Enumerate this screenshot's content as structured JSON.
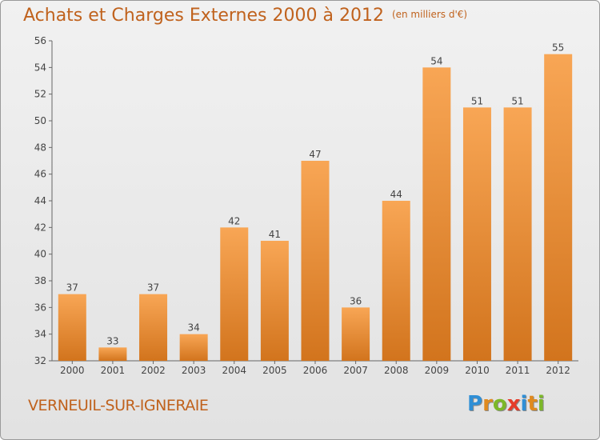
{
  "title": "Achats et Charges Externes 2000 à 2012",
  "unit_note": "(en milliers d'€)",
  "location": "VERNEUIL-SUR-IGNERAIE",
  "brand": "Proxiti",
  "brand_letters": [
    {
      "ch": "P",
      "color": "#2f8fd6"
    },
    {
      "ch": "r",
      "color": "#e08a1e"
    },
    {
      "ch": "o",
      "color": "#7cb828"
    },
    {
      "ch": "x",
      "color": "#e63c2a"
    },
    {
      "ch": "i",
      "color": "#2f8fd6"
    },
    {
      "ch": "t",
      "color": "#e08a1e"
    },
    {
      "ch": "i",
      "color": "#7cb828"
    }
  ],
  "colors": {
    "bar_light": "#f8a655",
    "bar_dark": "#d2741d",
    "accent": "#c0621d"
  },
  "chart_data": {
    "type": "bar",
    "title": "Achats et Charges Externes 2000 à 2012",
    "subtitle": "(en milliers d'€)",
    "categories": [
      "2000",
      "2001",
      "2002",
      "2003",
      "2004",
      "2005",
      "2006",
      "2007",
      "2008",
      "2009",
      "2010",
      "2011",
      "2012"
    ],
    "values": [
      37,
      33,
      37,
      34,
      42,
      41,
      47,
      36,
      44,
      54,
      51,
      51,
      55
    ],
    "ylim": [
      32,
      56
    ],
    "yticks": [
      32,
      34,
      36,
      38,
      40,
      42,
      44,
      46,
      48,
      50,
      52,
      54,
      56
    ],
    "xlabel": "",
    "ylabel": "",
    "grid": false,
    "data_labels": true
  }
}
